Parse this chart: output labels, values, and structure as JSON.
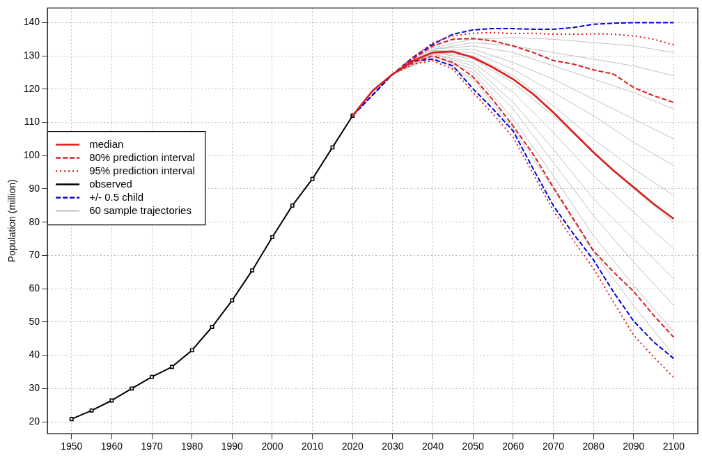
{
  "chart_data": {
    "type": "line",
    "ylabel": "Population (million)",
    "xlim": [
      1944,
      2106
    ],
    "ylim": [
      16.4,
      144.4
    ],
    "xticks": [
      1950,
      1960,
      1970,
      1980,
      1990,
      2000,
      2010,
      2020,
      2030,
      2040,
      2050,
      2060,
      2070,
      2080,
      2090,
      2100
    ],
    "yticks": [
      20,
      30,
      40,
      50,
      60,
      70,
      80,
      90,
      100,
      110,
      120,
      130,
      140
    ],
    "grid": true,
    "legend": "left",
    "series": [
      {
        "name": "median",
        "color": "#dd1c1c",
        "line_style": "solid",
        "x": [
          2020,
          2025,
          2030,
          2035,
          2040,
          2045,
          2050,
          2055,
          2060,
          2065,
          2070,
          2075,
          2080,
          2085,
          2090,
          2095,
          2100
        ],
        "values": [
          112,
          119.5,
          124.5,
          128.5,
          131,
          131.3,
          129.5,
          126.5,
          123,
          118.5,
          113,
          107,
          101,
          95.5,
          90.5,
          85.5,
          81
        ]
      },
      {
        "name": "80% prediction interval",
        "color": "#dd1c1c",
        "line_style": "dashed",
        "x": [
          2020,
          2025,
          2030,
          2035,
          2040,
          2045,
          2050,
          2055,
          2060,
          2065,
          2070,
          2075,
          2080,
          2085,
          2090,
          2095,
          2100
        ],
        "values": [
          112,
          119.5,
          124.5,
          129,
          133,
          135,
          135.2,
          134.5,
          133,
          131,
          128.6,
          127.5,
          125.8,
          124.5,
          120.5,
          118,
          116
        ]
      },
      {
        "color": "#dd1c1c",
        "line_style": "dashed",
        "x": [
          2020,
          2025,
          2030,
          2035,
          2040,
          2045,
          2050,
          2055,
          2060,
          2065,
          2070,
          2075,
          2080,
          2085,
          2090,
          2095,
          2100
        ],
        "values": [
          112,
          119.5,
          124.5,
          128,
          130,
          128,
          123.7,
          116.7,
          108.9,
          100.4,
          90.5,
          81,
          71.4,
          65,
          59.2,
          52,
          45.4
        ]
      },
      {
        "name": "95% prediction interval",
        "color": "#dd1c1c",
        "line_style": "dotted",
        "x": [
          2020,
          2025,
          2030,
          2035,
          2040,
          2045,
          2050,
          2055,
          2060,
          2065,
          2070,
          2075,
          2080,
          2085,
          2090,
          2095,
          2100
        ],
        "values": [
          112,
          119.5,
          124.5,
          129.5,
          134,
          136,
          136.8,
          137,
          136.7,
          136.8,
          136.5,
          136.5,
          136.6,
          136.5,
          136,
          135,
          133.3
        ]
      },
      {
        "color": "#dd1c1c",
        "line_style": "dotted",
        "x": [
          2020,
          2025,
          2030,
          2035,
          2040,
          2045,
          2050,
          2055,
          2060,
          2065,
          2070,
          2075,
          2080,
          2085,
          2090,
          2095,
          2100
        ],
        "values": [
          112,
          119.5,
          124.5,
          127.5,
          128.5,
          126,
          119,
          112.5,
          105.5,
          94.5,
          83.5,
          74.5,
          66.1,
          56,
          46,
          39.5,
          33.3
        ]
      },
      {
        "name": "observed",
        "color": "#000000",
        "line_style": "solid",
        "marker": "square",
        "x": [
          1950,
          1955,
          1960,
          1965,
          1970,
          1975,
          1980,
          1985,
          1990,
          1995,
          2000,
          2005,
          2010,
          2015,
          2020
        ],
        "values": [
          20.8,
          23.4,
          26.4,
          30,
          33.5,
          36.5,
          41.5,
          48.5,
          56.5,
          65.5,
          75.5,
          85,
          93,
          102.5,
          112
        ]
      },
      {
        "name": "+/- 0.5 child",
        "color": "#0000e0",
        "line_style": "dashed",
        "x": [
          2020,
          2025,
          2030,
          2035,
          2040,
          2045,
          2050,
          2055,
          2060,
          2065,
          2070,
          2075,
          2080,
          2085,
          2090,
          2095,
          2100
        ],
        "values": [
          112,
          null,
          124.5,
          129.5,
          133.5,
          136.5,
          137.8,
          138.2,
          138.2,
          138,
          138,
          138.5,
          139.5,
          139.8,
          140,
          140,
          140
        ]
      },
      {
        "color": "#0000e0",
        "line_style": "dashed",
        "x": [
          2020,
          2025,
          2030,
          2035,
          2040,
          2045,
          2050,
          2055,
          2060,
          2065,
          2070,
          2075,
          2080,
          2085,
          2090,
          2095,
          2100
        ],
        "values": [
          112,
          null,
          124.5,
          128.5,
          129,
          127,
          120.1,
          114,
          107.4,
          96,
          85,
          76.5,
          68.7,
          59,
          50.3,
          44,
          39
        ]
      },
      {
        "name": "60 sample trajectories",
        "color": "#c0c0c0",
        "line_style": "solid",
        "x": [
          2020,
          2030,
          2040,
          2050,
          2060,
          2070,
          2080,
          2090,
          2100
        ],
        "values": [
          112,
          124.5,
          132.5,
          135,
          135.5,
          135,
          134,
          133,
          131
        ]
      },
      {
        "color": "#c0c0c0",
        "line_style": "solid",
        "x": [
          2020,
          2030,
          2040,
          2050,
          2060,
          2070,
          2080,
          2090,
          2100
        ],
        "values": [
          112,
          124.5,
          132,
          134,
          133,
          131,
          129,
          127,
          124
        ]
      },
      {
        "color": "#c0c0c0",
        "line_style": "solid",
        "x": [
          2020,
          2030,
          2040,
          2050,
          2060,
          2070,
          2080,
          2090,
          2100
        ],
        "values": [
          112,
          124.5,
          132,
          133,
          131,
          127,
          123,
          119,
          114
        ]
      },
      {
        "color": "#c0c0c0",
        "line_style": "solid",
        "x": [
          2020,
          2030,
          2040,
          2050,
          2060,
          2070,
          2080,
          2090,
          2100
        ],
        "values": [
          112,
          124.5,
          131.5,
          132,
          128,
          123,
          117,
          111,
          105
        ]
      },
      {
        "color": "#c0c0c0",
        "line_style": "solid",
        "x": [
          2020,
          2030,
          2040,
          2050,
          2060,
          2070,
          2080,
          2090,
          2100
        ],
        "values": [
          112,
          124.5,
          131.5,
          131,
          126,
          119,
          112,
          104,
          97
        ]
      },
      {
        "color": "#c0c0c0",
        "line_style": "solid",
        "x": [
          2020,
          2030,
          2040,
          2050,
          2060,
          2070,
          2080,
          2090,
          2100
        ],
        "values": [
          112,
          124.5,
          131,
          130,
          124,
          115,
          105,
          96,
          88
        ]
      },
      {
        "color": "#c0c0c0",
        "line_style": "solid",
        "x": [
          2020,
          2030,
          2040,
          2050,
          2060,
          2070,
          2080,
          2090,
          2100
        ],
        "values": [
          112,
          124.5,
          131,
          129,
          122,
          112,
          101,
          90,
          80
        ]
      },
      {
        "color": "#c0c0c0",
        "line_style": "solid",
        "x": [
          2020,
          2030,
          2040,
          2050,
          2060,
          2070,
          2080,
          2090,
          2100
        ],
        "values": [
          112,
          124.5,
          130.5,
          128,
          119,
          107,
          94,
          83,
          72
        ]
      },
      {
        "color": "#c0c0c0",
        "line_style": "solid",
        "x": [
          2020,
          2030,
          2040,
          2050,
          2060,
          2070,
          2080,
          2090,
          2100
        ],
        "values": [
          112,
          124.5,
          130.5,
          127,
          116,
          102,
          87,
          75,
          63
        ]
      },
      {
        "color": "#c0c0c0",
        "line_style": "solid",
        "x": [
          2020,
          2030,
          2040,
          2050,
          2060,
          2070,
          2080,
          2090,
          2100
        ],
        "values": [
          112,
          124.5,
          130,
          126,
          114,
          98,
          82,
          68,
          55
        ]
      },
      {
        "color": "#c0c0c0",
        "line_style": "solid",
        "x": [
          2020,
          2030,
          2040,
          2050,
          2060,
          2070,
          2080,
          2090,
          2100
        ],
        "values": [
          112,
          124.5,
          130,
          125,
          111,
          94,
          76,
          61,
          47
        ]
      },
      {
        "color": "#c0c0c0",
        "line_style": "solid",
        "x": [
          2020,
          2030,
          2040,
          2050,
          2060,
          2070,
          2080,
          2090,
          2100
        ],
        "values": [
          112,
          124.5,
          129.5,
          123,
          108,
          90,
          71,
          55,
          40
        ]
      }
    ]
  }
}
